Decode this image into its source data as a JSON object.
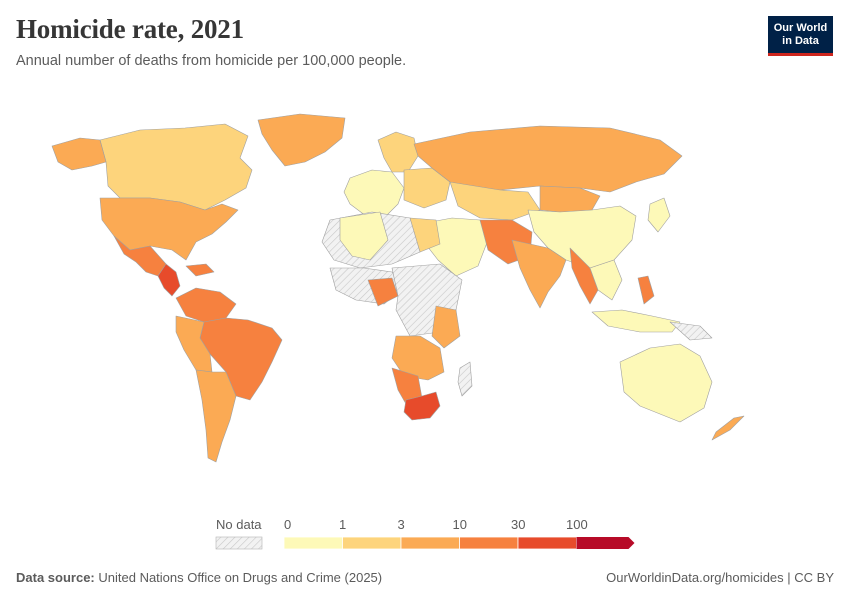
{
  "header": {
    "title": "Homicide rate, 2021",
    "subtitle": "Annual number of deaths from homicide per 100,000 people."
  },
  "logo": {
    "line1": "Our World",
    "line2": "in Data"
  },
  "legend": {
    "no_data_label": "No data",
    "ticks": [
      "0",
      "1",
      "3",
      "10",
      "30",
      "100"
    ],
    "colors": [
      "#fdf9b8",
      "#fdd47c",
      "#fbaa54",
      "#f6813f",
      "#e74b2b",
      "#b70b28"
    ],
    "no_data_color": "#e8e8e8"
  },
  "map_colors": {
    "very_low": "#fdf9b8",
    "low": "#fdd47c",
    "mid": "#fbaa54",
    "high": "#f6813f",
    "very_high": "#e74b2b",
    "extreme": "#b70b28",
    "no_data": "#ececec",
    "border": "#9a9a9a"
  },
  "footer": {
    "source_label": "Data source:",
    "source_text": "United Nations Office on Drugs and Crime (2025)",
    "right_text": "OurWorldinData.org/homicides | CC BY"
  }
}
